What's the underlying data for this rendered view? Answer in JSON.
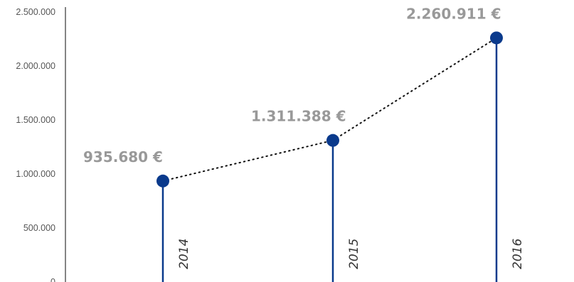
{
  "chart_data": {
    "type": "line",
    "title": "",
    "xlabel": "",
    "ylabel": "",
    "x": [
      "2014",
      "2015",
      "2016"
    ],
    "values": [
      935680,
      1311388,
      2260911
    ],
    "value_labels": [
      "935.680 €",
      "1.311.388 €",
      "2.260.911 €"
    ],
    "yticks": [
      0,
      500000,
      1000000,
      1500000,
      2000000,
      2500000
    ],
    "ytick_labels": [
      "0",
      "500.000",
      "1.000.000",
      "1.500.000",
      "2.000.000",
      "2.500.000"
    ],
    "ylim": [
      0,
      2500000
    ],
    "grid": false,
    "connector_style": "dotted",
    "colors": {
      "marker": "#0a3a8c",
      "stem": "#0a3a8c",
      "value_label": "#999999",
      "axis": "#333333"
    }
  }
}
